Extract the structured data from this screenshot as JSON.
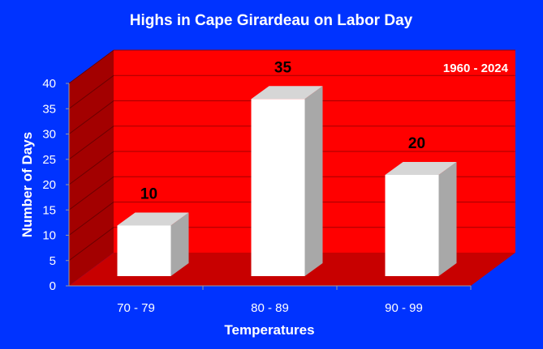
{
  "chart_data": {
    "type": "bar",
    "title": "Highs in Cape Girardeau on Labor Day",
    "annotation": "1960 - 2024",
    "xlabel": "Temperatures",
    "ylabel": "Number of Days",
    "categories": [
      "70 - 79",
      "80 - 89",
      "90 - 99"
    ],
    "values": [
      10,
      35,
      20
    ],
    "data_labels": [
      "10",
      "35",
      "20"
    ],
    "ylim": [
      0,
      40
    ],
    "yticks": [
      0,
      5,
      10,
      15,
      20,
      25,
      30,
      35,
      40
    ],
    "grid": true,
    "legend": "none",
    "style": "3d",
    "colors": {
      "background": "#0033ff",
      "plot_wall": "#ff0000",
      "side_wall": "#a30000",
      "floor": "#c80000",
      "gridline": "#a30000",
      "bar_front": "#ffffff",
      "bar_top": "#d6d6d6",
      "bar_side": "#a8a8a8"
    }
  }
}
